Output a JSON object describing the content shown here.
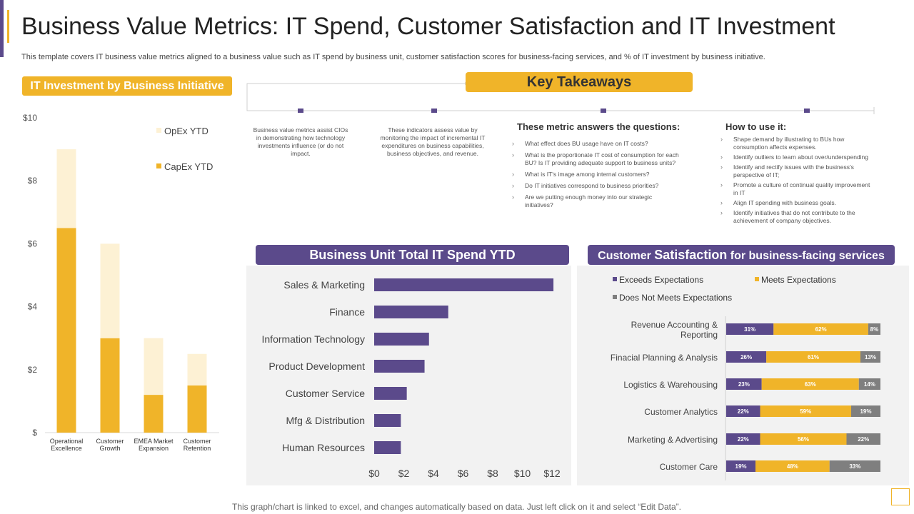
{
  "title": "Business Value Metrics: IT Spend, Customer Satisfaction and IT Investment",
  "subtitle": "This template covers IT  business value metrics aligned to a business value such as IT spend by business unit, customer satisfaction scores for business-facing services, and % of IT  investment by business initiative.",
  "colors": {
    "purple": "#5b4a8b",
    "gold": "#f0b429",
    "cream": "#fdf1d4",
    "grey": "#7f7f7f"
  },
  "investment": {
    "heading": "IT Investment by Business Initiative",
    "chart_data": {
      "type": "bar",
      "stacked": true,
      "title": "IT Investment by Business Initiative",
      "categories": [
        "Operational Excellence",
        "Customer Growth",
        "EMEA Market Expansion",
        "Customer Retention"
      ],
      "category_lines": [
        [
          "Operational",
          "Excellence"
        ],
        [
          "Customer",
          "Growth"
        ],
        [
          "EMEA Market",
          "Expansion"
        ],
        [
          "Customer",
          "Retention"
        ]
      ],
      "series": [
        {
          "name": "CapEx YTD",
          "values": [
            6.5,
            3.0,
            1.2,
            1.5
          ]
        },
        {
          "name": "OpEx YTD",
          "values": [
            2.5,
            3.0,
            1.8,
            1.0
          ]
        }
      ],
      "legend": [
        "OpEx YTD",
        "CapEx YTD"
      ],
      "yticks": [
        "$",
        "$2",
        "$4",
        "$6",
        "$8",
        "$10"
      ],
      "ylim": [
        0,
        10
      ]
    }
  },
  "takeaways": {
    "heading": "Key Takeaways",
    "col1": "Business value metrics assist CIOs in demonstrating how technology investments influence (or do not impact.",
    "col2": "These indicators assess value by monitoring the impact of incremental IT expenditures on business capabilities, business objectives, and revenue.",
    "questions_heading": "These metric answers the questions:",
    "questions": [
      "What effect does BU usage have on IT costs?",
      "What is the proportionate  IT cost of consumption for each BU? Is IT providing adequate support to business units?",
      "What is IT's image among internal customers?",
      "Do IT initiatives correspond to business priorities?",
      "Are we putting enough  money into our strategic initiatives?"
    ],
    "howto_heading": "How to use it:",
    "howto": [
      "Shape demand  by illustrating to BUs how consumption affects expenses.",
      "Identify outliers to learn about over/underspending",
      "Identify and rectify issues with the business's perspective of IT;",
      "Promote a culture of continual quality improvement in IT",
      "Align IT spending with  business goals.",
      "Identify initiatives that do not contribute to the achievement of company objectives."
    ]
  },
  "spend": {
    "heading": "Business Unit Total IT Spend YTD",
    "chart_data": {
      "type": "bar",
      "orientation": "horizontal",
      "title": "Business Unit Total IT Spend YTD",
      "categories": [
        "Sales & Marketing",
        "Finance",
        "Information Technology",
        "Product Development",
        "Customer Service",
        "Mfg & Distribution",
        "Human Resources"
      ],
      "values": [
        12.1,
        5.0,
        3.7,
        3.4,
        2.2,
        1.8,
        1.8
      ],
      "xticks": [
        "$0",
        "$2",
        "$4",
        "$6",
        "$8",
        "$10",
        "$12"
      ],
      "xlim": [
        0,
        12
      ]
    }
  },
  "satisfaction": {
    "heading_prefix": "Customer ",
    "heading_emph": "Satisfaction",
    "heading_suffix": " for business-facing services",
    "chart_data": {
      "type": "bar",
      "orientation": "horizontal",
      "stacked": true,
      "title": "Customer Satisfaction for business-facing services",
      "legend": [
        "Exceeds Expectations",
        "Meets Expectations",
        "Does Not Meets Expectations"
      ],
      "categories": [
        "Revenue Accounting & Reporting",
        "Finacial Planning & Analysis",
        "Logistics & Warehousing",
        "Customer Analytics",
        "Marketing & Advertising",
        "Customer Care"
      ],
      "category_lines": [
        [
          "Revenue Accounting &",
          "Reporting"
        ],
        [
          "Finacial Planning & Analysis"
        ],
        [
          "Logistics & Warehousing"
        ],
        [
          "Customer Analytics"
        ],
        [
          "Marketing & Advertising"
        ],
        [
          "Customer Care"
        ]
      ],
      "series": [
        {
          "name": "Exceeds Expectations",
          "values": [
            31,
            26,
            23,
            22,
            22,
            19
          ],
          "labels": [
            "31%",
            "26%",
            "23%",
            "22%",
            "22%",
            "19%"
          ]
        },
        {
          "name": "Meets Expectations",
          "values": [
            62,
            61,
            63,
            59,
            56,
            48
          ],
          "labels": [
            "62%",
            "61%",
            "63%",
            "59%",
            "56%",
            "48%"
          ]
        },
        {
          "name": "Does Not Meets Expectations",
          "values": [
            8,
            13,
            14,
            19,
            22,
            33
          ],
          "labels": [
            "8%",
            "13%",
            "14%",
            "19%",
            "22%",
            "33%"
          ]
        }
      ]
    }
  },
  "footer": "This graph/chart is linked to excel,  and changes automatically based on data. Just left click on it and select “Edit Data”."
}
